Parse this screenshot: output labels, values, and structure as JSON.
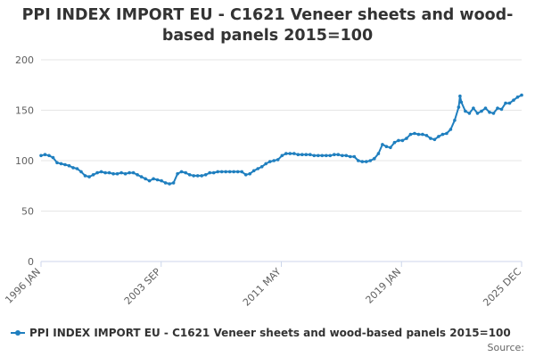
{
  "chart_data": {
    "type": "line",
    "title": "PPI INDEX IMPORT EU - C1621 Veneer sheets and wood-based panels 2015=100",
    "x_tick_labels": [
      "1996 JAN",
      "2003 SEP",
      "2011 MAY",
      "2019 JAN",
      "2025 DEC"
    ],
    "x_range": [
      "1996-01",
      "2025-12"
    ],
    "ylim": [
      0,
      200
    ],
    "yticks": [
      0,
      50,
      100,
      150,
      200
    ],
    "grid": true,
    "legend_position": "bottom",
    "series": [
      {
        "name": "PPI INDEX IMPORT EU - C1621 Veneer sheets and wood-based panels 2015=100",
        "color": "#1f7fbf",
        "points": [
          [
            "1996-01",
            105
          ],
          [
            "1996-04",
            106
          ],
          [
            "1996-07",
            105
          ],
          [
            "1996-10",
            103
          ],
          [
            "1997-01",
            98
          ],
          [
            "1997-04",
            97
          ],
          [
            "1997-07",
            96
          ],
          [
            "1997-10",
            95
          ],
          [
            "1998-01",
            93
          ],
          [
            "1998-04",
            92
          ],
          [
            "1998-07",
            89
          ],
          [
            "1998-10",
            85
          ],
          [
            "1999-01",
            84
          ],
          [
            "1999-04",
            86
          ],
          [
            "1999-07",
            88
          ],
          [
            "1999-10",
            89
          ],
          [
            "2000-01",
            88
          ],
          [
            "2000-04",
            88
          ],
          [
            "2000-07",
            87
          ],
          [
            "2000-10",
            87
          ],
          [
            "2001-01",
            88
          ],
          [
            "2001-04",
            87
          ],
          [
            "2001-07",
            88
          ],
          [
            "2001-10",
            88
          ],
          [
            "2002-01",
            86
          ],
          [
            "2002-04",
            84
          ],
          [
            "2002-07",
            82
          ],
          [
            "2002-10",
            80
          ],
          [
            "2003-01",
            82
          ],
          [
            "2003-04",
            81
          ],
          [
            "2003-07",
            80
          ],
          [
            "2003-10",
            78
          ],
          [
            "2004-01",
            77
          ],
          [
            "2004-04",
            78
          ],
          [
            "2004-07",
            87
          ],
          [
            "2004-10",
            89
          ],
          [
            "2005-01",
            88
          ],
          [
            "2005-04",
            86
          ],
          [
            "2005-07",
            85
          ],
          [
            "2005-10",
            85
          ],
          [
            "2006-01",
            85
          ],
          [
            "2006-04",
            86
          ],
          [
            "2006-07",
            88
          ],
          [
            "2006-10",
            88
          ],
          [
            "2007-01",
            89
          ],
          [
            "2007-04",
            89
          ],
          [
            "2007-07",
            89
          ],
          [
            "2007-10",
            89
          ],
          [
            "2008-01",
            89
          ],
          [
            "2008-04",
            89
          ],
          [
            "2008-07",
            89
          ],
          [
            "2008-10",
            86
          ],
          [
            "2009-01",
            87
          ],
          [
            "2009-04",
            90
          ],
          [
            "2009-07",
            92
          ],
          [
            "2009-10",
            94
          ],
          [
            "2010-01",
            97
          ],
          [
            "2010-04",
            99
          ],
          [
            "2010-07",
            100
          ],
          [
            "2010-10",
            101
          ],
          [
            "2011-01",
            105
          ],
          [
            "2011-04",
            107
          ],
          [
            "2011-07",
            107
          ],
          [
            "2011-10",
            107
          ],
          [
            "2012-01",
            106
          ],
          [
            "2012-04",
            106
          ],
          [
            "2012-07",
            106
          ],
          [
            "2012-10",
            106
          ],
          [
            "2013-01",
            105
          ],
          [
            "2013-04",
            105
          ],
          [
            "2013-07",
            105
          ],
          [
            "2013-10",
            105
          ],
          [
            "2014-01",
            105
          ],
          [
            "2014-04",
            106
          ],
          [
            "2014-07",
            106
          ],
          [
            "2014-10",
            105
          ],
          [
            "2015-01",
            105
          ],
          [
            "2015-04",
            104
          ],
          [
            "2015-07",
            104
          ],
          [
            "2015-10",
            100
          ],
          [
            "2016-01",
            99
          ],
          [
            "2016-04",
            99
          ],
          [
            "2016-07",
            100
          ],
          [
            "2016-10",
            102
          ],
          [
            "2017-01",
            107
          ],
          [
            "2017-04",
            116
          ],
          [
            "2017-07",
            114
          ],
          [
            "2017-10",
            113
          ],
          [
            "2018-01",
            118
          ],
          [
            "2018-04",
            120
          ],
          [
            "2018-07",
            120
          ],
          [
            "2018-10",
            122
          ],
          [
            "2019-01",
            126
          ],
          [
            "2019-04",
            127
          ],
          [
            "2019-07",
            126
          ],
          [
            "2019-10",
            126
          ],
          [
            "2020-01",
            125
          ],
          [
            "2020-04",
            122
          ],
          [
            "2020-07",
            121
          ],
          [
            "2020-10",
            124
          ],
          [
            "2021-01",
            126
          ],
          [
            "2021-04",
            127
          ],
          [
            "2021-07",
            131
          ],
          [
            "2021-10",
            140
          ],
          [
            "2022-01",
            153
          ],
          [
            "2022-02",
            164
          ],
          [
            "2022-03",
            158
          ],
          [
            "2022-06",
            149
          ],
          [
            "2022-09",
            147
          ],
          [
            "2022-12",
            152
          ],
          [
            "2023-03",
            147
          ],
          [
            "2023-06",
            149
          ],
          [
            "2023-09",
            152
          ],
          [
            "2023-12",
            148
          ],
          [
            "2024-03",
            147
          ],
          [
            "2024-06",
            152
          ],
          [
            "2024-09",
            151
          ],
          [
            "2024-12",
            157
          ],
          [
            "2025-03",
            157
          ],
          [
            "2025-06",
            160
          ],
          [
            "2025-09",
            163
          ],
          [
            "2025-12",
            165
          ]
        ]
      }
    ]
  },
  "legend": {
    "label": "PPI INDEX IMPORT EU - C1621 Veneer sheets and wood-based panels 2015=100"
  },
  "source": {
    "label": "Source:"
  }
}
